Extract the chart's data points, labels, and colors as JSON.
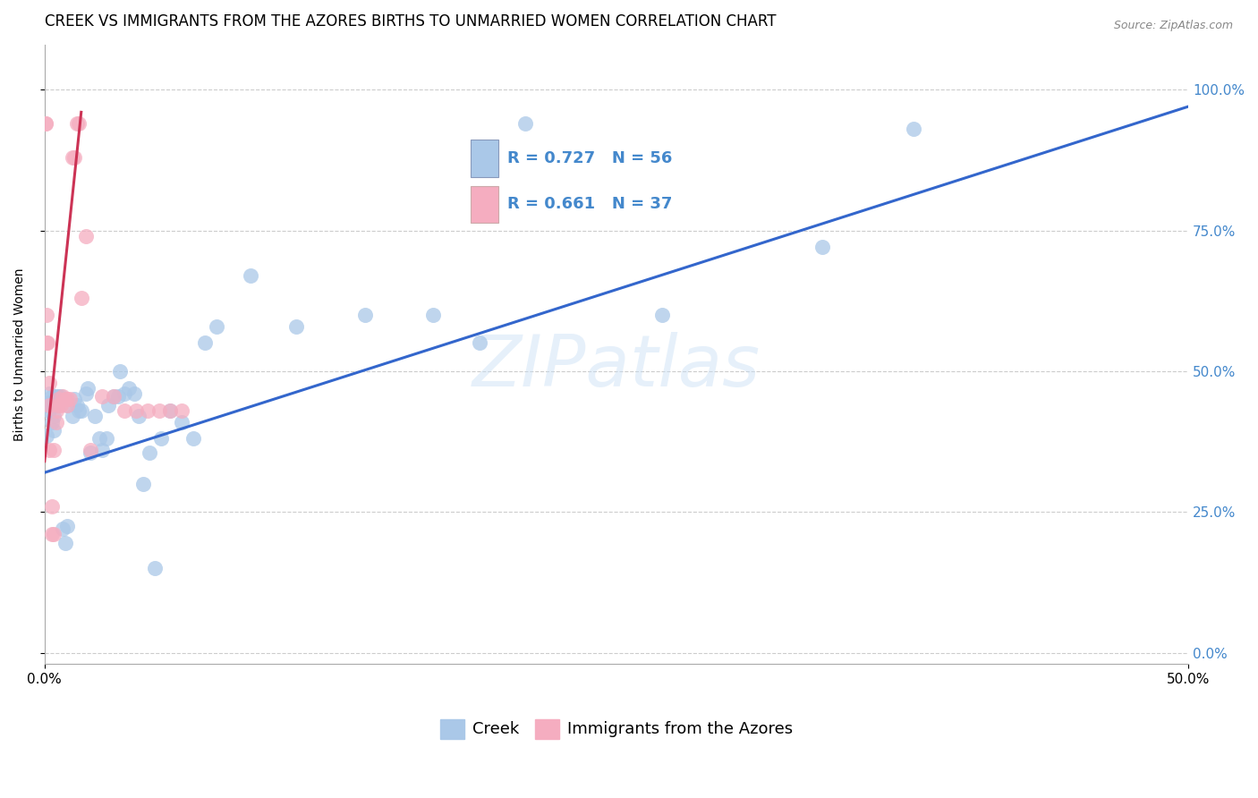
{
  "title": "CREEK VS IMMIGRANTS FROM THE AZORES BIRTHS TO UNMARRIED WOMEN CORRELATION CHART",
  "source": "Source: ZipAtlas.com",
  "ylabel": "Births to Unmarried Women",
  "xlim": [
    0.0,
    0.5
  ],
  "ylim": [
    -0.02,
    1.08
  ],
  "xticks": [
    0.0,
    0.5
  ],
  "xticklabels": [
    "0.0%",
    "50.0%"
  ],
  "yticks": [
    0.0,
    0.25,
    0.5,
    0.75,
    1.0
  ],
  "yticklabels": [
    "0.0%",
    "25.0%",
    "50.0%",
    "75.0%",
    "100.0%"
  ],
  "legend_blue_label": "Creek",
  "legend_pink_label": "Immigrants from the Azores",
  "R_blue": 0.727,
  "N_blue": 56,
  "R_pink": 0.661,
  "N_pink": 37,
  "blue_color": "#aac8e8",
  "pink_color": "#f5adc0",
  "blue_line_color": "#3366cc",
  "pink_line_color": "#cc3355",
  "watermark": "ZIPatlas",
  "title_fontsize": 12,
  "axis_label_fontsize": 10,
  "tick_fontsize": 11,
  "legend_fontsize": 13,
  "right_tick_color": "#4488cc",
  "blue_scatter": [
    [
      0.001,
      0.385
    ],
    [
      0.001,
      0.44
    ],
    [
      0.002,
      0.445
    ],
    [
      0.002,
      0.46
    ],
    [
      0.002,
      0.43
    ],
    [
      0.003,
      0.44
    ],
    [
      0.003,
      0.455
    ],
    [
      0.003,
      0.41
    ],
    [
      0.004,
      0.42
    ],
    [
      0.004,
      0.395
    ],
    [
      0.005,
      0.44
    ],
    [
      0.005,
      0.455
    ],
    [
      0.006,
      0.455
    ],
    [
      0.007,
      0.455
    ],
    [
      0.008,
      0.22
    ],
    [
      0.009,
      0.195
    ],
    [
      0.01,
      0.225
    ],
    [
      0.01,
      0.44
    ],
    [
      0.012,
      0.42
    ],
    [
      0.013,
      0.45
    ],
    [
      0.014,
      0.44
    ],
    [
      0.015,
      0.43
    ],
    [
      0.016,
      0.43
    ],
    [
      0.018,
      0.46
    ],
    [
      0.019,
      0.47
    ],
    [
      0.02,
      0.355
    ],
    [
      0.022,
      0.42
    ],
    [
      0.024,
      0.38
    ],
    [
      0.025,
      0.36
    ],
    [
      0.027,
      0.38
    ],
    [
      0.028,
      0.44
    ],
    [
      0.03,
      0.455
    ],
    [
      0.032,
      0.455
    ],
    [
      0.033,
      0.5
    ],
    [
      0.035,
      0.46
    ],
    [
      0.037,
      0.47
    ],
    [
      0.039,
      0.46
    ],
    [
      0.041,
      0.42
    ],
    [
      0.043,
      0.3
    ],
    [
      0.046,
      0.355
    ],
    [
      0.048,
      0.15
    ],
    [
      0.051,
      0.38
    ],
    [
      0.055,
      0.43
    ],
    [
      0.06,
      0.41
    ],
    [
      0.065,
      0.38
    ],
    [
      0.07,
      0.55
    ],
    [
      0.075,
      0.58
    ],
    [
      0.09,
      0.67
    ],
    [
      0.11,
      0.58
    ],
    [
      0.14,
      0.6
    ],
    [
      0.17,
      0.6
    ],
    [
      0.19,
      0.55
    ],
    [
      0.21,
      0.94
    ],
    [
      0.27,
      0.6
    ],
    [
      0.34,
      0.72
    ],
    [
      0.38,
      0.93
    ]
  ],
  "pink_scatter": [
    [
      0.0003,
      0.94
    ],
    [
      0.0005,
      0.94
    ],
    [
      0.001,
      0.55
    ],
    [
      0.001,
      0.6
    ],
    [
      0.0013,
      0.55
    ],
    [
      0.002,
      0.44
    ],
    [
      0.002,
      0.48
    ],
    [
      0.002,
      0.36
    ],
    [
      0.003,
      0.21
    ],
    [
      0.003,
      0.26
    ],
    [
      0.004,
      0.21
    ],
    [
      0.004,
      0.36
    ],
    [
      0.005,
      0.41
    ],
    [
      0.005,
      0.43
    ],
    [
      0.006,
      0.44
    ],
    [
      0.006,
      0.45
    ],
    [
      0.007,
      0.44
    ],
    [
      0.008,
      0.455
    ],
    [
      0.009,
      0.45
    ],
    [
      0.01,
      0.44
    ],
    [
      0.01,
      0.45
    ],
    [
      0.011,
      0.45
    ],
    [
      0.012,
      0.88
    ],
    [
      0.013,
      0.88
    ],
    [
      0.014,
      0.94
    ],
    [
      0.015,
      0.94
    ],
    [
      0.016,
      0.63
    ],
    [
      0.018,
      0.74
    ],
    [
      0.02,
      0.36
    ],
    [
      0.025,
      0.455
    ],
    [
      0.03,
      0.455
    ],
    [
      0.035,
      0.43
    ],
    [
      0.04,
      0.43
    ],
    [
      0.045,
      0.43
    ],
    [
      0.05,
      0.43
    ],
    [
      0.055,
      0.43
    ],
    [
      0.06,
      0.43
    ]
  ],
  "blue_line_x": [
    0.0,
    0.5
  ],
  "blue_line_y": [
    0.32,
    0.97
  ],
  "pink_line_x": [
    0.0,
    0.016
  ],
  "pink_line_y": [
    0.34,
    0.96
  ]
}
